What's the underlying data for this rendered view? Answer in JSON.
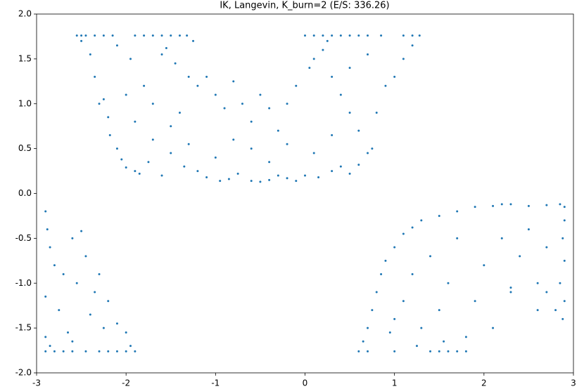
{
  "chart_data": {
    "type": "scatter",
    "title": "IK, Langevin, K_burn=2 (E/S: 336.26)",
    "color": "#1f77b4",
    "xlim": [
      -3,
      3
    ],
    "xticks": [
      -3,
      -2,
      -1,
      0,
      1,
      2,
      3
    ],
    "ylim": [
      -2,
      2
    ],
    "yticks": [
      {
        "value": -2,
        "label": "-2.0"
      },
      {
        "value": -1.5,
        "label": "-1.5"
      },
      {
        "value": -1,
        "label": "-1.0"
      },
      {
        "value": -0.5,
        "label": "-0.5"
      },
      {
        "value": 0,
        "label": "0.0"
      },
      {
        "value": 0.5,
        "label": "0.5"
      },
      {
        "value": 1,
        "label": "1.0"
      },
      {
        "value": 1.5,
        "label": "1.5"
      },
      {
        "value": 2,
        "label": "2.0"
      }
    ],
    "x": [
      -2.55,
      -2.5,
      -2.45,
      -2.35,
      -2.25,
      -2.15,
      -1.9,
      -1.8,
      -1.7,
      -1.6,
      -1.5,
      -1.4,
      -1.32,
      0,
      0.1,
      0.2,
      0.3,
      0.4,
      0.5,
      0.6,
      0.7,
      0.85,
      1.1,
      1.2,
      1.28,
      -2.5,
      -2.4,
      -2.35,
      -2.3,
      -2.25,
      -2.2,
      -2.18,
      -2.1,
      -2.05,
      -2.0,
      -1.9,
      -1.85,
      -1.75,
      -1.6,
      -1.5,
      -1.35,
      -1.2,
      -1.1,
      -0.95,
      -0.85,
      -0.75,
      -0.6,
      -0.5,
      -0.4,
      -0.3,
      -0.2,
      -0.1,
      0.0,
      0.15,
      0.3,
      0.4,
      0.5,
      0.6,
      0.7,
      0.75,
      0.8,
      0.9,
      1.0,
      1.1,
      1.2,
      -2.1,
      -1.95,
      -1.8,
      -1.7,
      -1.6,
      -1.55,
      -1.45,
      -1.4,
      -1.3,
      -1.2,
      -1.1,
      -1.0,
      -0.9,
      -0.8,
      -0.7,
      -0.6,
      -0.5,
      -0.4,
      -0.3,
      -0.2,
      -0.1,
      0.05,
      0.1,
      0.2,
      0.3,
      0.4,
      0.5,
      0.6,
      -1.9,
      -1.7,
      -1.5,
      -1.3,
      -1.0,
      -0.8,
      -0.6,
      -0.4,
      -0.2,
      0.1,
      0.3,
      0.5,
      0.7,
      -2.0,
      -1.25,
      0.25,
      -2.9,
      -2.8,
      -2.7,
      -2.6,
      -2.45,
      -2.3,
      -2.2,
      -2.1,
      -2.0,
      -1.9,
      -2.9,
      -2.88,
      -2.85,
      -2.9,
      -2.9,
      -2.85,
      -2.75,
      -2.7,
      -2.65,
      -2.6,
      -2.55,
      -2.5,
      -2.45,
      -2.4,
      -2.35,
      -2.3,
      -2.25,
      -2.2,
      -2.1,
      -2.0,
      -1.95,
      -2.6,
      -2.8,
      0.6,
      0.7,
      1.0,
      1.4,
      1.5,
      1.6,
      1.7,
      1.8,
      0.65,
      0.7,
      0.75,
      0.8,
      0.85,
      0.9,
      1.0,
      1.1,
      1.2,
      1.3,
      1.5,
      1.7,
      1.9,
      2.1,
      2.2,
      2.3,
      2.5,
      2.7,
      2.85,
      2.9,
      2.9,
      2.88,
      2.9,
      2.85,
      2.9,
      2.88,
      2.8,
      2.7,
      2.6,
      1.0,
      1.1,
      1.2,
      1.3,
      1.4,
      1.5,
      1.6,
      1.7,
      1.8,
      1.9,
      2.0,
      2.1,
      2.2,
      2.3,
      2.4,
      2.5,
      2.6,
      2.7,
      2.3,
      1.25,
      0.95,
      1.55
    ],
    "y": [
      1.76,
      1.76,
      1.76,
      1.76,
      1.76,
      1.76,
      1.76,
      1.76,
      1.76,
      1.76,
      1.76,
      1.76,
      1.76,
      1.76,
      1.76,
      1.76,
      1.76,
      1.76,
      1.76,
      1.76,
      1.76,
      1.76,
      1.76,
      1.76,
      1.76,
      1.7,
      1.55,
      1.3,
      1.0,
      1.05,
      0.85,
      0.65,
      0.5,
      0.38,
      0.29,
      0.25,
      0.22,
      0.35,
      0.2,
      0.45,
      0.3,
      0.25,
      0.18,
      0.14,
      0.16,
      0.22,
      0.14,
      0.13,
      0.15,
      0.2,
      0.17,
      0.14,
      0.2,
      0.18,
      0.25,
      0.3,
      0.22,
      0.32,
      0.45,
      0.5,
      0.9,
      1.2,
      1.3,
      1.5,
      1.65,
      1.65,
      1.5,
      1.2,
      1.0,
      1.55,
      1.62,
      1.45,
      0.9,
      1.3,
      1.2,
      1.3,
      1.1,
      0.95,
      1.25,
      1.0,
      0.8,
      1.1,
      0.95,
      0.7,
      1.0,
      1.2,
      1.4,
      1.5,
      1.6,
      1.3,
      1.1,
      0.9,
      0.7,
      0.8,
      0.6,
      0.75,
      0.55,
      0.4,
      0.6,
      0.5,
      0.35,
      0.55,
      0.45,
      0.65,
      1.4,
      1.55,
      1.1,
      1.7,
      1.7,
      -1.76,
      -1.76,
      -1.76,
      -1.76,
      -1.76,
      -1.76,
      -1.76,
      -1.76,
      -1.76,
      -1.76,
      -0.2,
      -0.4,
      -0.6,
      -1.15,
      -1.6,
      -1.7,
      -1.3,
      -0.9,
      -1.55,
      -0.5,
      -1.0,
      -0.42,
      -0.7,
      -1.35,
      -1.1,
      -0.9,
      -1.5,
      -1.2,
      -1.45,
      -1.55,
      -1.7,
      -1.65,
      -0.8,
      -1.76,
      -1.76,
      -1.76,
      -1.76,
      -1.76,
      -1.76,
      -1.76,
      -1.76,
      -1.65,
      -1.5,
      -1.3,
      -1.1,
      -0.9,
      -0.75,
      -0.6,
      -0.45,
      -0.38,
      -0.3,
      -0.25,
      -0.2,
      -0.15,
      -0.14,
      -0.12,
      -0.12,
      -0.14,
      -0.13,
      -0.12,
      -0.15,
      -0.3,
      -0.5,
      -0.75,
      -1.0,
      -1.2,
      -1.4,
      -1.3,
      -1.1,
      -1.0,
      -1.4,
      -1.2,
      -0.9,
      -1.5,
      -0.7,
      -1.3,
      -1.0,
      -0.5,
      -1.6,
      -1.2,
      -0.8,
      -1.5,
      -0.5,
      -1.05,
      -0.7,
      -0.4,
      -1.3,
      -0.6,
      -1.1,
      -1.7,
      -1.55,
      -1.65
    ]
  }
}
